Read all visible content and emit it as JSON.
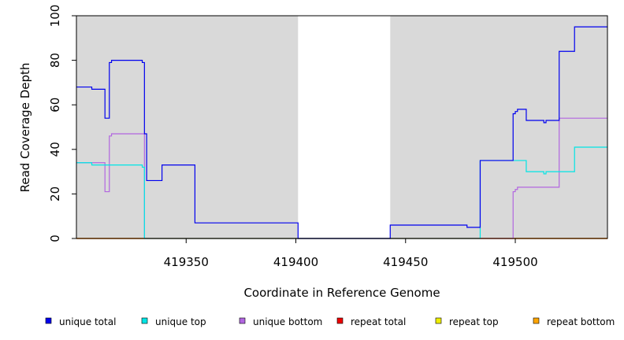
{
  "chart_data": {
    "type": "line",
    "xlabel": "Coordinate in Reference Genome",
    "ylabel": "Read Coverage Depth",
    "xlim": [
      419300,
      419542
    ],
    "ylim": [
      0,
      100
    ],
    "xticks": [
      419350,
      419400,
      419450,
      419500
    ],
    "yticks": [
      0,
      20,
      40,
      60,
      80,
      100
    ],
    "xtick_labels": [
      "419350",
      "419400",
      "419450",
      "419500"
    ],
    "ytick_labels": [
      "0",
      "20",
      "40",
      "60",
      "80",
      "100"
    ],
    "grid": false,
    "legend_position": "bottom",
    "shaded_regions": [
      {
        "x0": 419300,
        "x1": 419401
      },
      {
        "x0": 419443,
        "x1": 419542
      }
    ],
    "series": [
      {
        "name": "unique total",
        "color": "#0000ee",
        "step": true,
        "points": [
          [
            419300,
            68
          ],
          [
            419307,
            68
          ],
          [
            419307,
            67
          ],
          [
            419313,
            67
          ],
          [
            419313,
            54
          ],
          [
            419315,
            54
          ],
          [
            419315,
            79
          ],
          [
            419316,
            79
          ],
          [
            419316,
            80
          ],
          [
            419330,
            80
          ],
          [
            419330,
            79
          ],
          [
            419331,
            79
          ],
          [
            419331,
            47
          ],
          [
            419332,
            47
          ],
          [
            419332,
            26
          ],
          [
            419339,
            26
          ],
          [
            419339,
            33
          ],
          [
            419354,
            33
          ],
          [
            419354,
            7
          ],
          [
            419401,
            7
          ],
          [
            419401,
            0
          ],
          [
            419443,
            0
          ],
          [
            419443,
            6
          ],
          [
            419478,
            6
          ],
          [
            419478,
            5
          ],
          [
            419484,
            5
          ],
          [
            419484,
            35
          ],
          [
            419499,
            35
          ],
          [
            419499,
            56
          ],
          [
            419500,
            56
          ],
          [
            419500,
            57
          ],
          [
            419501,
            57
          ],
          [
            419501,
            58
          ],
          [
            419505,
            58
          ],
          [
            419505,
            53
          ],
          [
            419513,
            53
          ],
          [
            419513,
            52
          ],
          [
            419514,
            52
          ],
          [
            419514,
            53
          ],
          [
            419520,
            53
          ],
          [
            419520,
            84
          ],
          [
            419527,
            84
          ],
          [
            419527,
            95
          ],
          [
            419542,
            95
          ]
        ]
      },
      {
        "name": "unique top",
        "color": "#00e5e5",
        "step": true,
        "points": [
          [
            419300,
            34
          ],
          [
            419307,
            34
          ],
          [
            419307,
            33
          ],
          [
            419330,
            33
          ],
          [
            419330,
            32
          ],
          [
            419331,
            32
          ],
          [
            419331,
            0
          ],
          [
            419484,
            0
          ],
          [
            419484,
            35
          ],
          [
            419505,
            35
          ],
          [
            419505,
            30
          ],
          [
            419513,
            30
          ],
          [
            419513,
            29
          ],
          [
            419514,
            29
          ],
          [
            419514,
            30
          ],
          [
            419527,
            30
          ],
          [
            419527,
            41
          ],
          [
            419542,
            41
          ]
        ]
      },
      {
        "name": "unique bottom",
        "color": "#b266e0",
        "step": true,
        "points": [
          [
            419300,
            34
          ],
          [
            419313,
            34
          ],
          [
            419313,
            21
          ],
          [
            419315,
            21
          ],
          [
            419315,
            46
          ],
          [
            419316,
            46
          ],
          [
            419316,
            47
          ],
          [
            419331,
            47
          ],
          [
            419331,
            0
          ],
          [
            419499,
            0
          ],
          [
            419499,
            21
          ],
          [
            419500,
            21
          ],
          [
            419500,
            22
          ],
          [
            419501,
            22
          ],
          [
            419501,
            23
          ],
          [
            419520,
            23
          ],
          [
            419520,
            54
          ],
          [
            419542,
            54
          ]
        ]
      },
      {
        "name": "repeat total",
        "color": "#ee0000",
        "step": true,
        "points": [
          [
            419300,
            0
          ],
          [
            419542,
            0
          ]
        ]
      },
      {
        "name": "repeat top",
        "color": "#eeee00",
        "step": true,
        "points": [
          [
            419300,
            0
          ],
          [
            419542,
            0
          ]
        ]
      },
      {
        "name": "repeat bottom",
        "color": "#ffa500",
        "step": true,
        "points": [
          [
            419300,
            0
          ],
          [
            419542,
            0
          ]
        ]
      }
    ]
  }
}
